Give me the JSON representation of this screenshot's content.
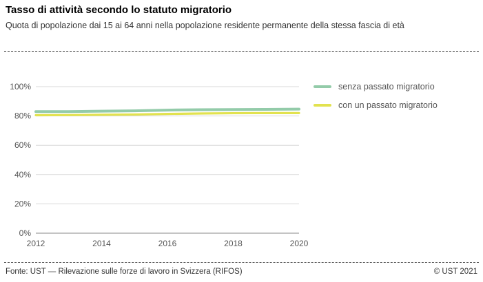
{
  "header": {
    "title": "Tasso di attività secondo lo statuto migratorio",
    "subtitle": "Quota di popolazione dai 15 ai 64 anni nella popolazione residente permanente della stessa fascia di età"
  },
  "chart_data": {
    "type": "line",
    "x": [
      2012,
      2013,
      2014,
      2015,
      2016,
      2017,
      2018,
      2019,
      2020
    ],
    "series": [
      {
        "name": "senza passato migratorio",
        "color": "#93cba9",
        "values": [
          83.0,
          83.0,
          83.3,
          83.5,
          84.0,
          84.3,
          84.4,
          84.5,
          84.7
        ]
      },
      {
        "name": "con un passato migratorio",
        "color": "#e2e24f",
        "values": [
          80.5,
          80.6,
          80.8,
          81.0,
          81.4,
          81.7,
          81.9,
          82.0,
          82.0
        ]
      }
    ],
    "title": "",
    "xlabel": "",
    "ylabel": "",
    "ylim": [
      0,
      100
    ],
    "yticks": [
      0,
      20,
      40,
      60,
      80,
      100
    ],
    "xticks": [
      2012,
      2014,
      2016,
      2018,
      2020
    ],
    "grid": true,
    "legend_position": "right",
    "y_tick_suffix": "%"
  },
  "footer": {
    "source": "Fonte: UST — Rilevazione sulle forze di lavoro in Svizzera (RIFOS)",
    "copyright": "© UST 2021"
  }
}
